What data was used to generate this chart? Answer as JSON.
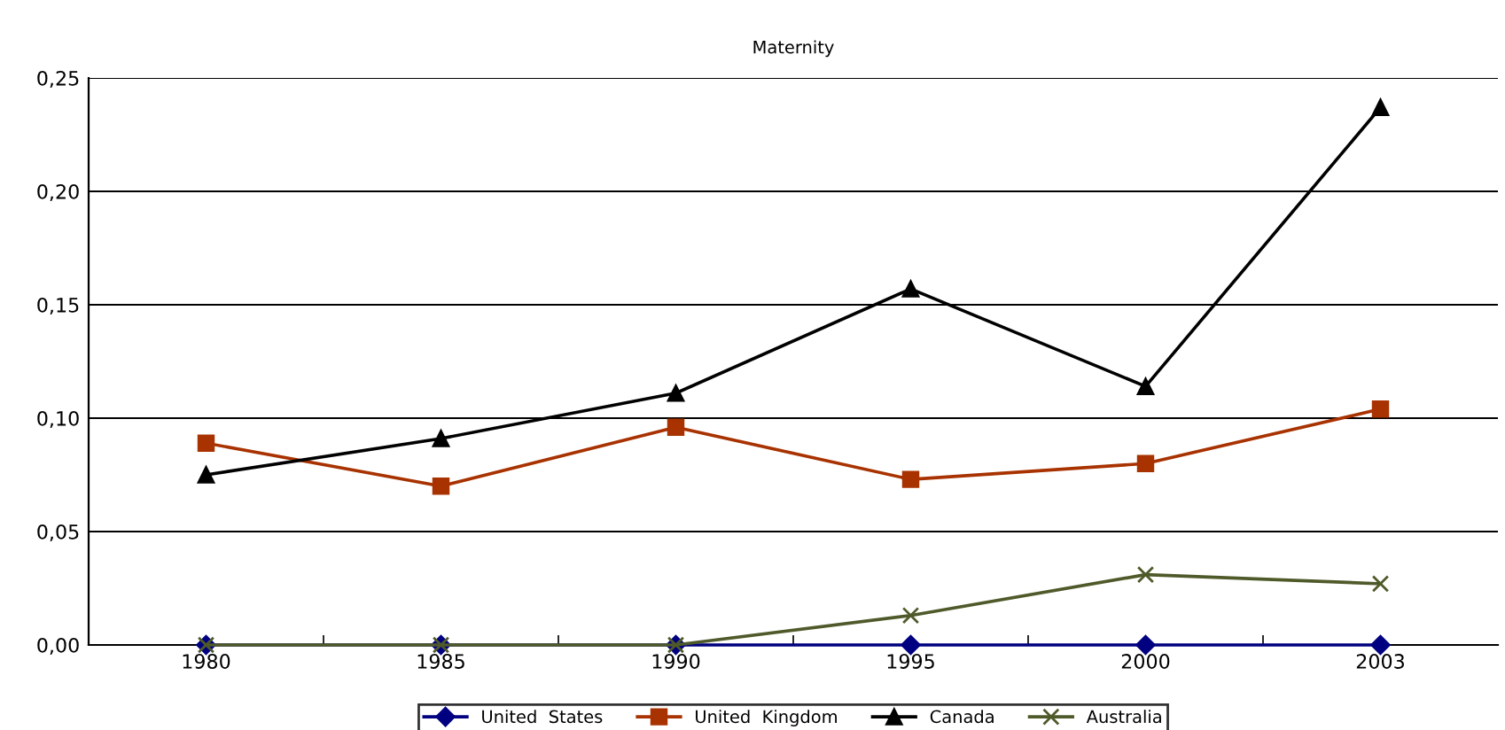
{
  "chart_data": {
    "type": "line",
    "title": "Maternity",
    "categories": [
      "1980",
      "1985",
      "1990",
      "1995",
      "2000",
      "2003"
    ],
    "series": [
      {
        "name": "United  States",
        "color": "#000080",
        "marker": "diamond",
        "values": [
          0,
          0,
          0,
          0,
          0,
          0
        ]
      },
      {
        "name": "United  Kingdom",
        "color": "#a83200",
        "marker": "square",
        "values": [
          0.089,
          0.07,
          0.096,
          0.073,
          0.08,
          0.104
        ]
      },
      {
        "name": "Canada",
        "color": "#000000",
        "marker": "triangle",
        "values": [
          0.075,
          0.091,
          0.111,
          0.157,
          0.114,
          0.237
        ]
      },
      {
        "name": "Australia",
        "color": "#4f5a2a",
        "marker": "cross",
        "values": [
          0,
          0,
          0,
          0.013,
          0.031,
          0.027
        ]
      }
    ],
    "ylim": [
      0,
      0.25
    ],
    "yticks": [
      {
        "value": 0,
        "label": "0,00"
      },
      {
        "value": 0.05,
        "label": "0,05"
      },
      {
        "value": 0.1,
        "label": "0,10"
      },
      {
        "value": 0.15,
        "label": "0,15"
      },
      {
        "value": 0.2,
        "label": "0,20"
      },
      {
        "value": 0.25,
        "label": "0,25"
      }
    ],
    "grid": "y",
    "legend": "bottom",
    "line_style": "solid"
  }
}
